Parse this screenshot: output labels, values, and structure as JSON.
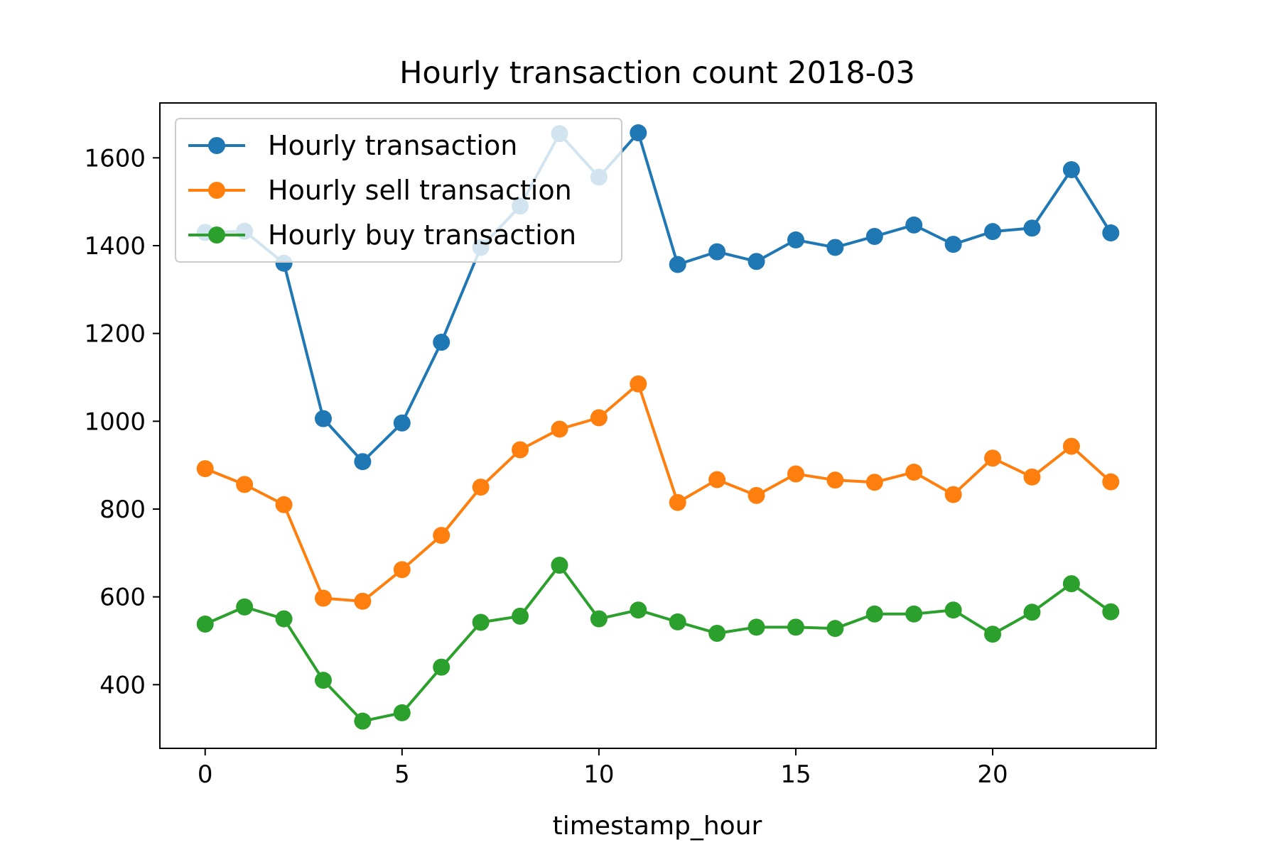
{
  "chart_data": {
    "type": "line",
    "title": "Hourly transaction count 2018-03",
    "xlabel": "timestamp_hour",
    "ylabel": "",
    "xlim": [
      -1.15,
      24.15
    ],
    "ylim": [
      255,
      1725
    ],
    "xticks": [
      0,
      5,
      10,
      15,
      20
    ],
    "yticks": [
      400,
      600,
      800,
      1000,
      1200,
      1400,
      1600
    ],
    "grid": false,
    "legend_position": "top-left",
    "x": [
      0,
      1,
      2,
      3,
      4,
      5,
      6,
      7,
      8,
      9,
      10,
      11,
      12,
      13,
      14,
      15,
      16,
      17,
      18,
      19,
      20,
      21,
      22,
      23
    ],
    "series": [
      {
        "name": "Hourly transaction",
        "color": "#1f77b4",
        "values": [
          1430,
          1433,
          1360,
          1006,
          908,
          996,
          1180,
          1396,
          1490,
          1655,
          1556,
          1657,
          1357,
          1386,
          1364,
          1413,
          1396,
          1421,
          1447,
          1403,
          1432,
          1440,
          1573,
          1429
        ]
      },
      {
        "name": "Hourly sell transaction",
        "color": "#ff7f0e",
        "values": [
          892,
          856,
          810,
          597,
          590,
          662,
          740,
          850,
          935,
          982,
          1008,
          1085,
          815,
          867,
          831,
          880,
          866,
          861,
          884,
          833,
          916,
          873,
          943,
          862
        ]
      },
      {
        "name": "Hourly buy transaction",
        "color": "#2ca02c",
        "values": [
          538,
          577,
          550,
          410,
          317,
          336,
          440,
          542,
          556,
          672,
          550,
          570,
          543,
          517,
          531,
          531,
          528,
          561,
          561,
          570,
          515,
          565,
          630,
          566
        ]
      }
    ]
  }
}
